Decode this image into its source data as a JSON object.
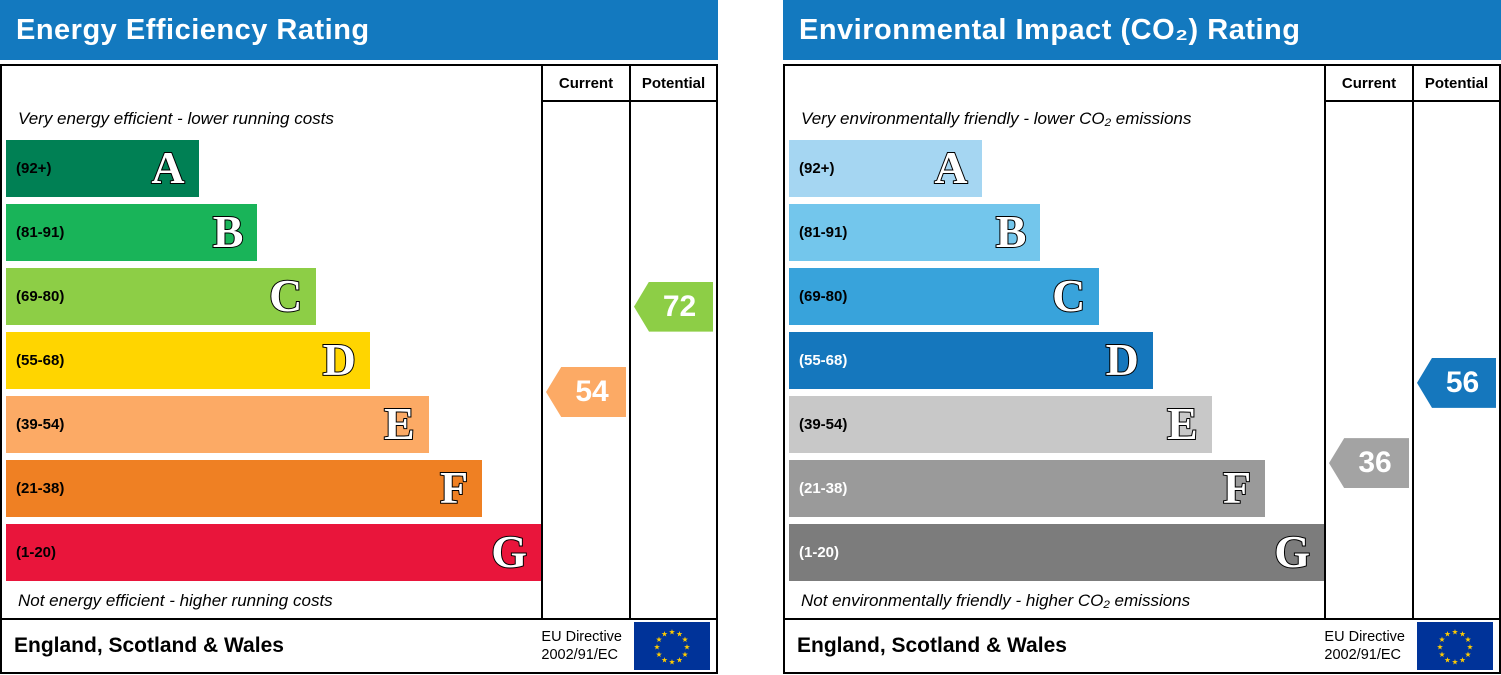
{
  "colors": {
    "header_bg": "#1379bf",
    "header_text": "#ffffff",
    "eu_flag_bg": "#003399",
    "eu_star": "#ffcc00"
  },
  "chart_data": [
    {
      "type": "bar",
      "title": "Energy Efficiency Rating",
      "columns": {
        "current": "Current",
        "potential": "Potential"
      },
      "caption_top": "Very energy efficient - lower running costs",
      "caption_bottom": "Not energy efficient - higher running costs",
      "bands": [
        {
          "letter": "A",
          "range_label": "(92+)",
          "min": 92,
          "max": 100,
          "color": "#008054",
          "bar_pct": 36,
          "label_color": "#000000"
        },
        {
          "letter": "B",
          "range_label": "(81-91)",
          "min": 81,
          "max": 91,
          "color": "#19b459",
          "bar_pct": 47,
          "label_color": "#000000"
        },
        {
          "letter": "C",
          "range_label": "(69-80)",
          "min": 69,
          "max": 80,
          "color": "#8dce46",
          "bar_pct": 58,
          "label_color": "#000000"
        },
        {
          "letter": "D",
          "range_label": "(55-68)",
          "min": 55,
          "max": 68,
          "color": "#ffd500",
          "bar_pct": 68,
          "label_color": "#000000"
        },
        {
          "letter": "E",
          "range_label": "(39-54)",
          "min": 39,
          "max": 54,
          "color": "#fcaa65",
          "bar_pct": 79,
          "label_color": "#000000"
        },
        {
          "letter": "F",
          "range_label": "(21-38)",
          "min": 21,
          "max": 38,
          "color": "#ef8023",
          "bar_pct": 89,
          "label_color": "#000000"
        },
        {
          "letter": "G",
          "range_label": "(1-20)",
          "min": 1,
          "max": 20,
          "color": "#e9153b",
          "bar_pct": 100,
          "label_color": "#000000"
        }
      ],
      "current": {
        "value": 54,
        "color": "#fcaa65"
      },
      "potential": {
        "value": 72,
        "color": "#8dce46"
      },
      "footer": {
        "region": "England, Scotland & Wales",
        "directive": [
          "EU Directive",
          "2002/91/EC"
        ]
      }
    },
    {
      "type": "bar",
      "title": "Environmental Impact (CO₂) Rating",
      "columns": {
        "current": "Current",
        "potential": "Potential"
      },
      "caption_top": "Very environmentally friendly - lower CO₂ emissions",
      "caption_bottom": "Not environmentally friendly - higher CO₂ emissions",
      "bands": [
        {
          "letter": "A",
          "range_label": "(92+)",
          "min": 92,
          "max": 100,
          "color": "#a5d6f2",
          "bar_pct": 36,
          "label_color": "#000000"
        },
        {
          "letter": "B",
          "range_label": "(81-91)",
          "min": 81,
          "max": 91,
          "color": "#73c6ec",
          "bar_pct": 47,
          "label_color": "#000000"
        },
        {
          "letter": "C",
          "range_label": "(69-80)",
          "min": 69,
          "max": 80,
          "color": "#38a3db",
          "bar_pct": 58,
          "label_color": "#000000"
        },
        {
          "letter": "D",
          "range_label": "(55-68)",
          "min": 55,
          "max": 68,
          "color": "#1577bd",
          "bar_pct": 68,
          "label_color": "#ffffff"
        },
        {
          "letter": "E",
          "range_label": "(39-54)",
          "min": 39,
          "max": 54,
          "color": "#c8c8c8",
          "bar_pct": 79,
          "label_color": "#000000"
        },
        {
          "letter": "F",
          "range_label": "(21-38)",
          "min": 21,
          "max": 38,
          "color": "#9a9a9a",
          "bar_pct": 89,
          "label_color": "#ffffff"
        },
        {
          "letter": "G",
          "range_label": "(1-20)",
          "min": 1,
          "max": 20,
          "color": "#7c7c7c",
          "bar_pct": 100,
          "label_color": "#ffffff"
        }
      ],
      "current": {
        "value": 36,
        "color": "#a3a3a3"
      },
      "potential": {
        "value": 56,
        "color": "#1577bd"
      },
      "footer": {
        "region": "England, Scotland & Wales",
        "directive": [
          "EU Directive",
          "2002/91/EC"
        ]
      }
    }
  ]
}
